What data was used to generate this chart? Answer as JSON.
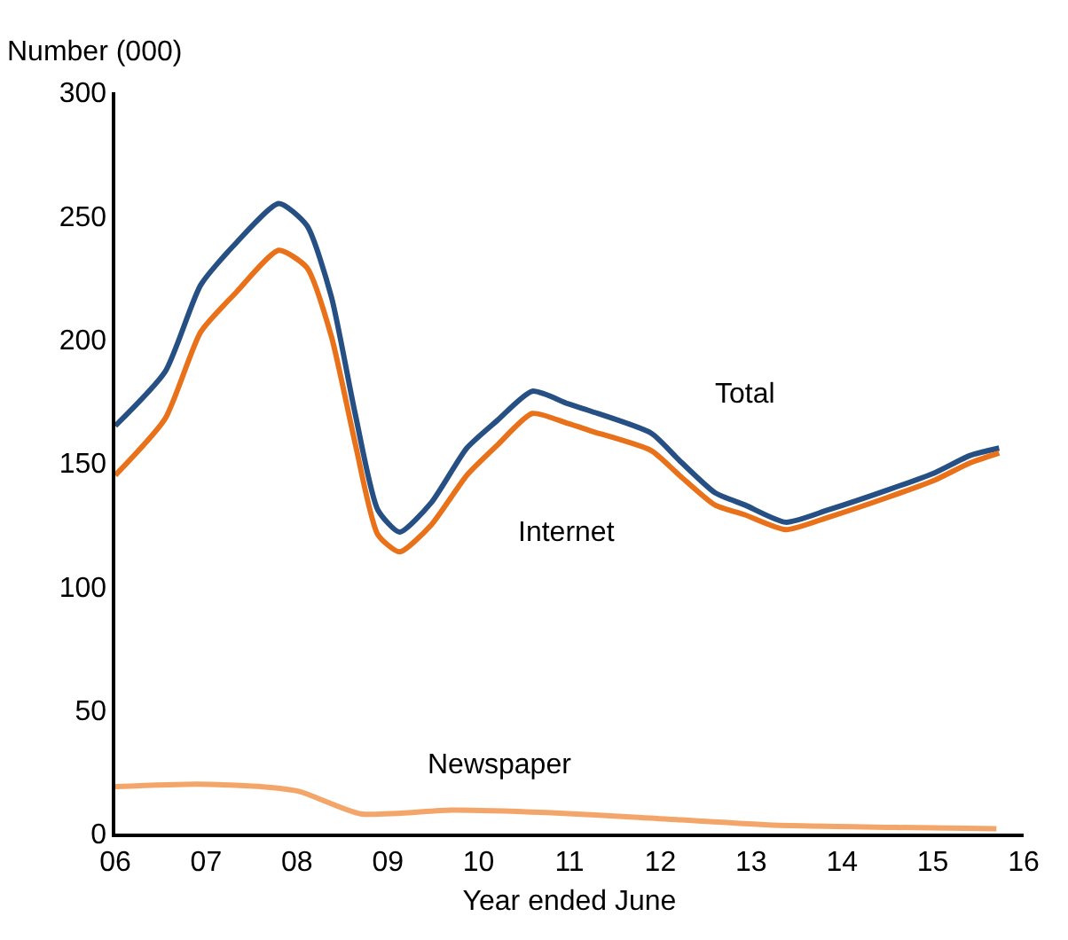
{
  "chart_data": {
    "type": "line",
    "ylabel": "Number (000)",
    "xlabel": "Year ended June",
    "xlim": [
      6,
      16
    ],
    "ylim": [
      0,
      300
    ],
    "xticks": [
      {
        "value": 6,
        "label": "06"
      },
      {
        "value": 7,
        "label": "07"
      },
      {
        "value": 8,
        "label": "08"
      },
      {
        "value": 9,
        "label": "09"
      },
      {
        "value": 10,
        "label": "10"
      },
      {
        "value": 11,
        "label": "11"
      },
      {
        "value": 12,
        "label": "12"
      },
      {
        "value": 13,
        "label": "13"
      },
      {
        "value": 14,
        "label": "14"
      },
      {
        "value": 15,
        "label": "15"
      },
      {
        "value": 16,
        "label": "16"
      }
    ],
    "yticks": [
      0,
      50,
      100,
      150,
      200,
      250,
      300
    ],
    "grid": false,
    "legend": false,
    "marker": "none",
    "line_style": "solid",
    "series": [
      {
        "name": "Total",
        "color": "#264f84",
        "x": [
          6,
          6.55,
          6.94,
          7.33,
          7.8,
          8.11,
          8.38,
          8.64,
          8.89,
          9.13,
          9.48,
          9.87,
          10.2,
          10.59,
          10.98,
          11.23,
          11.9,
          12.21,
          12.6,
          12.93,
          13.38,
          13.85,
          14.5,
          15.02,
          15.41,
          15.73
        ],
        "values": [
          165,
          187,
          222,
          239,
          255,
          246,
          217,
          170,
          131,
          122,
          134,
          156,
          167,
          179,
          174,
          171,
          162,
          151,
          138,
          133,
          126,
          131,
          139,
          146,
          153,
          156
        ]
      },
      {
        "name": "Internet",
        "color": "#e8711a",
        "x": [
          6,
          6.55,
          6.94,
          7.33,
          7.8,
          8.11,
          8.38,
          8.64,
          8.89,
          9.13,
          9.48,
          9.87,
          10.2,
          10.59,
          10.98,
          11.23,
          11.9,
          12.21,
          12.6,
          12.93,
          13.38,
          13.85,
          14.5,
          15.02,
          15.41,
          15.73
        ],
        "values": [
          145,
          168,
          203,
          219,
          236,
          229,
          201,
          158,
          121,
          114,
          125,
          145,
          157,
          170,
          166,
          163,
          155,
          145,
          133,
          129,
          123,
          128,
          136,
          143,
          150,
          154
        ]
      },
      {
        "name": "Newspaper",
        "color": "#f4a66a",
        "x": [
          6,
          6.9,
          7.6,
          8.03,
          8.7,
          9.7,
          10.75,
          11.8,
          13.2,
          14.6,
          15.7
        ],
        "values": [
          19,
          20,
          19,
          17,
          8,
          9.5,
          8.5,
          6.5,
          3.5,
          2.5,
          2
        ]
      }
    ]
  }
}
